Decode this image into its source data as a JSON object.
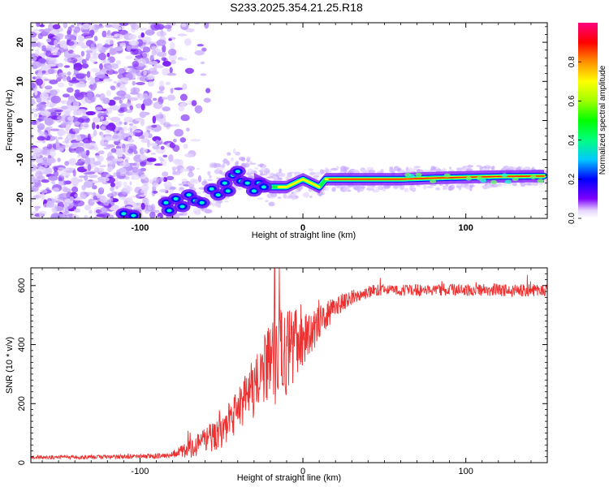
{
  "title": "S233.2025.354.21.25.R18",
  "chart_data": [
    {
      "type": "heatmap",
      "name": "spectrogram",
      "xlabel": "Height of straight line (km)",
      "ylabel": "Frequency (Hz)",
      "xlim": [
        -167,
        150
      ],
      "ylim": [
        -25,
        25
      ],
      "xticks": [
        -100,
        0,
        100
      ],
      "yticks": [
        -20,
        -10,
        0,
        10,
        20
      ],
      "ridge": [
        [
          -113,
          -24
        ],
        [
          -100,
          -23
        ],
        [
          -85,
          -23
        ],
        [
          -80,
          -22
        ],
        [
          -72,
          -21
        ],
        [
          -65,
          -20
        ],
        [
          -58,
          -18
        ],
        [
          -50,
          -16
        ],
        [
          -45,
          -14
        ],
        [
          -40,
          -12
        ],
        [
          -35,
          -13
        ],
        [
          -30,
          -15
        ],
        [
          -25,
          -16
        ],
        [
          -20,
          -17
        ],
        [
          -15,
          -17
        ],
        [
          -10,
          -17
        ],
        [
          -5,
          -16
        ],
        [
          0,
          -15
        ],
        [
          5,
          -16
        ],
        [
          10,
          -17
        ],
        [
          14,
          -15
        ],
        [
          20,
          -15
        ],
        [
          40,
          -15
        ],
        [
          60,
          -15
        ],
        [
          80,
          -14.7
        ],
        [
          100,
          -14.5
        ],
        [
          120,
          -14.3
        ],
        [
          148,
          -14.2
        ]
      ],
      "colorbar": {
        "label": "Normalized spectral amplitude",
        "ticks": [
          0.0,
          0.2,
          0.4,
          0.6,
          0.8
        ],
        "range": [
          0,
          1
        ]
      }
    },
    {
      "type": "line",
      "name": "snr",
      "xlabel": "Height of straight line (km)",
      "ylabel": "SNR (10 * v/v)",
      "xlim": [
        -167,
        150
      ],
      "ylim": [
        0,
        660
      ],
      "xticks": [
        -100,
        0,
        100
      ],
      "yticks": [
        0,
        200,
        400,
        600
      ],
      "color": "#ee3030",
      "envelope": {
        "x": [
          -167,
          -100,
          -90,
          -80,
          -70,
          -60,
          -50,
          -40,
          -30,
          -20,
          -15,
          -10,
          0,
          10,
          20,
          30,
          40,
          50,
          60,
          80,
          100,
          120,
          150
        ],
        "y": [
          18,
          20,
          22,
          28,
          45,
          75,
          110,
          170,
          260,
          330,
          360,
          380,
          420,
          470,
          530,
          560,
          580,
          585,
          585,
          585,
          585,
          585,
          585
        ],
        "amp": [
          6,
          8,
          10,
          12,
          30,
          45,
          60,
          80,
          110,
          140,
          160,
          150,
          90,
          60,
          35,
          25,
          22,
          20,
          20,
          20,
          20,
          22,
          22
        ]
      }
    }
  ]
}
